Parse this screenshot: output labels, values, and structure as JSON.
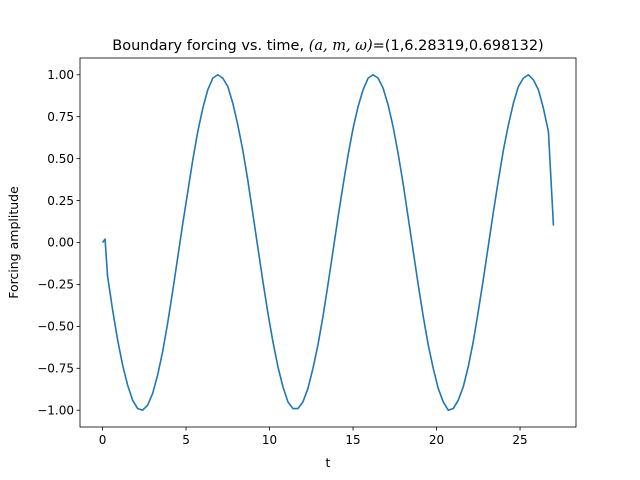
{
  "chart_data": {
    "type": "line",
    "title_prefix": "Boundary forcing vs. time, ",
    "title_math": "(a, m, ω)",
    "title_suffix": "=(1,6.28319,0.698132)",
    "xlabel": "t",
    "ylabel": "Forcing amplitude",
    "xlim": [
      -1.35,
      28.35
    ],
    "ylim": [
      -1.1,
      1.1
    ],
    "xticks": [
      0,
      5,
      10,
      15,
      20,
      25
    ],
    "xtick_labels": [
      "0",
      "5",
      "10",
      "15",
      "20",
      "25"
    ],
    "yticks": [
      -1.0,
      -0.75,
      -0.5,
      -0.25,
      0.0,
      0.25,
      0.5,
      0.75,
      1.0
    ],
    "ytick_labels": [
      "−1.00",
      "−0.75",
      "−0.50",
      "−0.25",
      "0.00",
      "0.25",
      "0.50",
      "0.75",
      "1.00"
    ],
    "grid": false,
    "series": [
      {
        "color": "#1f77b4",
        "x": [
          0,
          0.15,
          0.3,
          0.6,
          0.9,
          1.2,
          1.5,
          1.8,
          2.1,
          2.4,
          2.7,
          3.0,
          3.3,
          3.6,
          3.9,
          4.2,
          4.5,
          4.8,
          5.1,
          5.4,
          5.7,
          6.0,
          6.3,
          6.6,
          6.9,
          7.2,
          7.5,
          7.8,
          8.1,
          8.4,
          8.7,
          9.0,
          9.3,
          9.6,
          9.9,
          10.2,
          10.5,
          10.8,
          11.1,
          11.4,
          11.7,
          12.0,
          12.3,
          12.6,
          12.9,
          13.2,
          13.5,
          13.8,
          14.1,
          14.4,
          14.7,
          15.0,
          15.3,
          15.6,
          15.9,
          16.2,
          16.5,
          16.8,
          17.1,
          17.4,
          17.7,
          18.0,
          18.3,
          18.6,
          18.9,
          19.2,
          19.5,
          19.8,
          20.1,
          20.4,
          20.7,
          21.0,
          21.3,
          21.6,
          21.9,
          22.2,
          22.5,
          22.8,
          23.1,
          23.4,
          23.7,
          24.0,
          24.3,
          24.6,
          24.9,
          25.2,
          25.5,
          25.8,
          26.1,
          26.4,
          26.7,
          27.0
        ],
        "y": [
          0.0,
          0.02,
          -0.2,
          -0.4,
          -0.58,
          -0.73,
          -0.85,
          -0.94,
          -0.99,
          -1.0,
          -0.97,
          -0.9,
          -0.79,
          -0.65,
          -0.48,
          -0.29,
          -0.09,
          0.11,
          0.3,
          0.49,
          0.66,
          0.8,
          0.91,
          0.98,
          1.0,
          0.98,
          0.93,
          0.83,
          0.7,
          0.55,
          0.37,
          0.17,
          -0.03,
          -0.23,
          -0.42,
          -0.59,
          -0.74,
          -0.86,
          -0.95,
          -0.99,
          -0.99,
          -0.95,
          -0.87,
          -0.75,
          -0.61,
          -0.44,
          -0.25,
          -0.05,
          0.15,
          0.34,
          0.52,
          0.68,
          0.81,
          0.91,
          0.98,
          1.0,
          0.98,
          0.92,
          0.82,
          0.69,
          0.53,
          0.35,
          0.15,
          -0.05,
          -0.25,
          -0.44,
          -0.61,
          -0.75,
          -0.87,
          -0.95,
          -1.0,
          -0.99,
          -0.94,
          -0.86,
          -0.74,
          -0.59,
          -0.41,
          -0.22,
          -0.02,
          0.18,
          0.37,
          0.55,
          0.7,
          0.83,
          0.93,
          0.98,
          1.0,
          0.97,
          0.91,
          0.8,
          0.66,
          0.1
        ]
      }
    ]
  }
}
